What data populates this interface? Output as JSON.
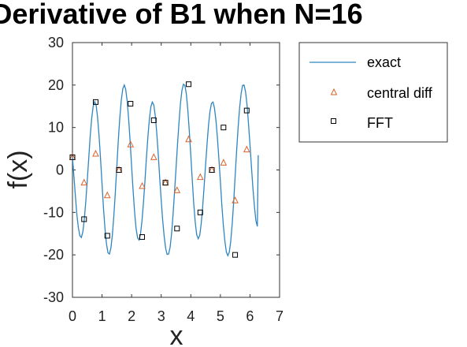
{
  "chart_data": {
    "type": "line",
    "title": "Derivative of B1 when N=16",
    "xlabel": "x",
    "ylabel": "f(x)",
    "xlim": [
      0,
      7
    ],
    "ylim": [
      -30,
      30
    ],
    "xticks": [
      0,
      1,
      2,
      3,
      4,
      5,
      6,
      7
    ],
    "yticks": [
      -30,
      -20,
      -10,
      0,
      10,
      20,
      30
    ],
    "grid": false,
    "legend_position": "outside-right",
    "colors": {
      "exact": "#2e86c1",
      "central": "#d9632b",
      "fft": "#000000"
    },
    "series": [
      {
        "name": "exact",
        "style": "line",
        "x": [
          0.0,
          0.05,
          0.1,
          0.15,
          0.2,
          0.25,
          0.3,
          0.35,
          0.4,
          0.45,
          0.5,
          0.55,
          0.6,
          0.65,
          0.7,
          0.75,
          0.8,
          0.85,
          0.9,
          0.95,
          1.0,
          1.05,
          1.1,
          1.15,
          1.2,
          1.25,
          1.3,
          1.35,
          1.4,
          1.45,
          1.5,
          1.55,
          1.6,
          1.65,
          1.7,
          1.75,
          1.8,
          1.85,
          1.9,
          1.95,
          2.0,
          2.05,
          2.1,
          2.15,
          2.2,
          2.25,
          2.3,
          2.35,
          2.4,
          2.45,
          2.5,
          2.55,
          2.6,
          2.65,
          2.7,
          2.75,
          2.8,
          2.85,
          2.9,
          2.95,
          3.0,
          3.05,
          3.1,
          3.15,
          3.2,
          3.25,
          3.3,
          3.35,
          3.4,
          3.45,
          3.5,
          3.55,
          3.6,
          3.65,
          3.7,
          3.75,
          3.8,
          3.85,
          3.9,
          3.95,
          4.0,
          4.05,
          4.1,
          4.15,
          4.2,
          4.25,
          4.3,
          4.35,
          4.4,
          4.45,
          4.5,
          4.55,
          4.6,
          4.65,
          4.7,
          4.75,
          4.8,
          4.85,
          4.9,
          4.95,
          5.0,
          5.05,
          5.1,
          5.15,
          5.2,
          5.25,
          5.3,
          5.35,
          5.4,
          5.45,
          5.5,
          5.55,
          5.6,
          5.65,
          5.7,
          5.75,
          5.8,
          5.85,
          5.9,
          5.95,
          6.0,
          6.05,
          6.1,
          6.15,
          6.2,
          6.25,
          6.28
        ],
        "y": [
          3.0,
          -1.6,
          -6.3,
          -10.5,
          -13.6,
          -15.5,
          -15.9,
          -14.6,
          -11.7,
          -7.5,
          -2.5,
          2.8,
          7.9,
          12.1,
          15.0,
          16.1,
          15.2,
          12.4,
          8.0,
          2.5,
          -3.4,
          -9.0,
          -13.8,
          -17.4,
          -19.5,
          -19.8,
          -18.4,
          -15.3,
          -10.7,
          -5.1,
          0.9,
          6.9,
          12.2,
          16.4,
          19.1,
          20.0,
          19.0,
          16.2,
          11.9,
          6.6,
          0.9,
          -4.8,
          -9.9,
          -13.8,
          -16.0,
          -16.5,
          -15.1,
          -12.0,
          -7.6,
          -2.5,
          2.8,
          7.8,
          12.0,
          14.9,
          16.0,
          15.3,
          12.7,
          8.6,
          3.5,
          -1.9,
          -7.1,
          -11.9,
          -15.7,
          -18.5,
          -19.9,
          -19.8,
          -18.2,
          -15.0,
          -10.6,
          -5.3,
          0.3,
          6.0,
          11.2,
          15.6,
          18.7,
          20.2,
          19.9,
          17.8,
          14.1,
          9.1,
          3.4,
          -2.5,
          -7.9,
          -12.3,
          -15.3,
          -16.2,
          -15.4,
          -12.8,
          -8.8,
          -3.9,
          1.3,
          6.3,
          10.6,
          13.9,
          15.7,
          16.0,
          14.6,
          11.7,
          7.5,
          2.5,
          -2.9,
          -8.3,
          -13.0,
          -16.7,
          -19.3,
          -20.2,
          -19.4,
          -16.8,
          -12.6,
          -7.3,
          -1.4,
          4.6,
          10.1,
          14.7,
          18.0,
          19.9,
          20.0,
          18.4,
          15.3,
          11.0,
          6.0,
          0.7,
          -4.4,
          -8.6,
          -11.9,
          -13.3,
          3.5
        ]
      },
      {
        "name": "central diff",
        "style": "triangle-markers",
        "x": [
          0.0,
          0.393,
          0.785,
          1.178,
          1.571,
          1.963,
          2.356,
          2.749,
          3.142,
          3.534,
          3.927,
          4.32,
          4.712,
          5.105,
          5.498,
          5.89
        ],
        "y": [
          3.0,
          -3.0,
          3.8,
          -6.0,
          0.0,
          6.0,
          -3.8,
          3.0,
          -3.0,
          -4.8,
          7.2,
          -1.7,
          0.0,
          1.7,
          -7.2,
          4.8
        ]
      },
      {
        "name": "FFT",
        "style": "square-markers",
        "x": [
          0.0,
          0.393,
          0.785,
          1.178,
          1.571,
          1.963,
          2.356,
          2.749,
          3.142,
          3.534,
          3.927,
          4.32,
          4.712,
          5.105,
          5.498,
          5.89
        ],
        "y": [
          3.0,
          -11.6,
          16.0,
          -15.5,
          0.0,
          15.6,
          -15.8,
          11.7,
          -3.0,
          -13.8,
          20.2,
          -10.0,
          0.0,
          10.0,
          -20.0,
          14.0
        ]
      }
    ]
  }
}
